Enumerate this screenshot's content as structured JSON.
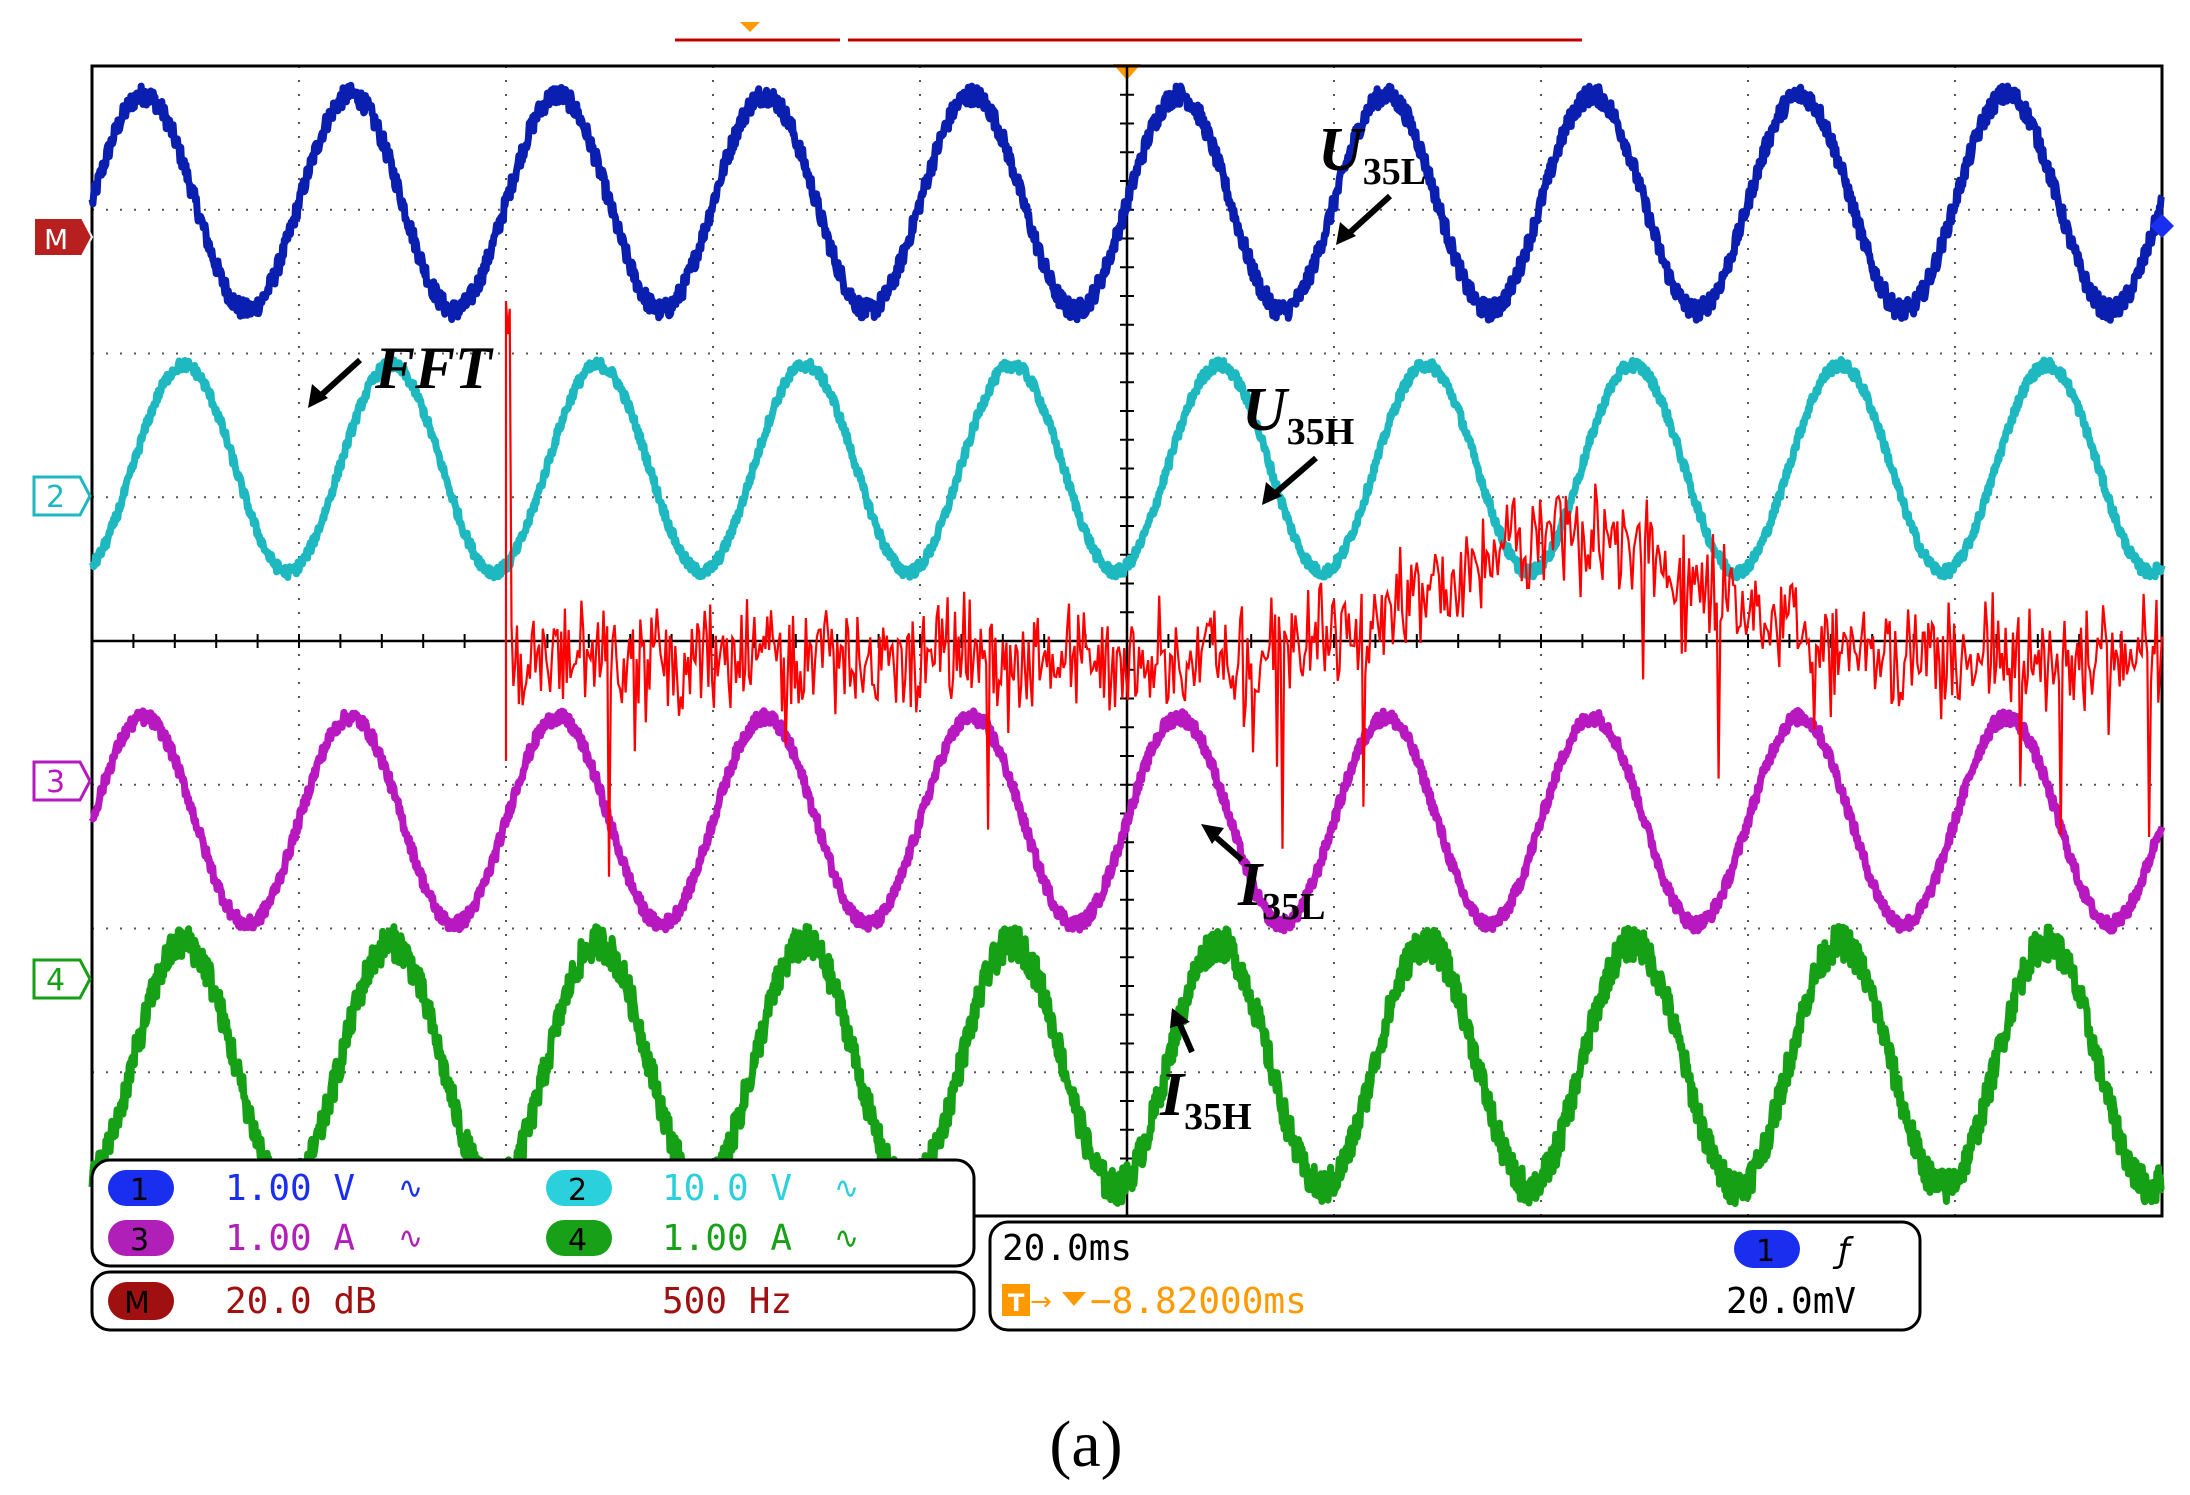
{
  "chart_data": {
    "type": "line",
    "title": "",
    "time_per_div": "20.0ms",
    "divisions": {
      "x": 10,
      "y": 8
    },
    "grid": true,
    "series": [
      {
        "id": "ch1",
        "name": "U35L",
        "label": "U",
        "subscript": "35L",
        "marker": "M",
        "color": "#0a1fb0",
        "amplitude_div": 0.75,
        "offset_div": 3.05,
        "freq_hz": 50,
        "phase_deg": 0,
        "noise_div": 0.07
      },
      {
        "id": "ch2",
        "name": "U35H",
        "label": "U",
        "subscript": "35H",
        "marker": "2",
        "color": "#1eb8c0",
        "amplitude_div": 0.72,
        "offset_div": 1.2,
        "freq_hz": 50,
        "phase_deg": -70,
        "noise_div": 0.04
      },
      {
        "id": "ch3",
        "name": "I35L",
        "label": "I",
        "subscript": "35L",
        "marker": "3",
        "color": "#b818c0",
        "amplitude_div": 0.72,
        "offset_div": -1.25,
        "freq_hz": 50,
        "phase_deg": 0,
        "noise_div": 0.05
      },
      {
        "id": "ch4",
        "name": "I35H",
        "label": "I",
        "subscript": "35H",
        "marker": "4",
        "color": "#16a016",
        "amplitude_div": 0.85,
        "offset_div": -2.95,
        "freq_hz": 50,
        "phase_deg": -70,
        "noise_div": 0.12
      }
    ],
    "fft": {
      "name": "FFT",
      "color": "#ff0000",
      "scale": "20.0 dB",
      "span": "500 Hz",
      "peak_x_div": 2.0
    }
  },
  "readouts": {
    "ch1": {
      "num": "1",
      "value": "1.00 V",
      "coupling": "∿",
      "color": "#1a2ef0"
    },
    "ch2": {
      "num": "2",
      "value": "10.0 V",
      "coupling": "∿",
      "color": "#2ad0dc"
    },
    "ch3": {
      "num": "3",
      "value": "1.00 A",
      "coupling": "∿",
      "color": "#b020b8"
    },
    "ch4": {
      "num": "4",
      "value": "1.00 A",
      "coupling": "∿",
      "color": "#18a018"
    },
    "math": {
      "label": "M",
      "scale": "20.0 dB",
      "span": "500 Hz",
      "color": "#a01010"
    },
    "timebase": "20.0ms",
    "trigger_pos": "−8.82000ms",
    "trigger_channel": "1",
    "trigger_slope": "ƒ",
    "trigger_level": "20.0mV"
  },
  "caption": "(a)"
}
